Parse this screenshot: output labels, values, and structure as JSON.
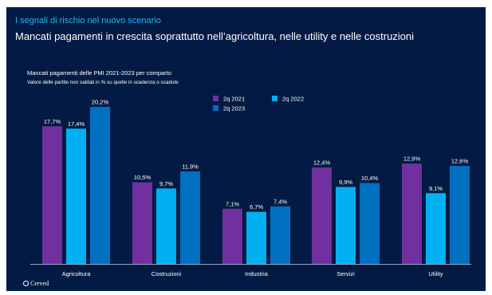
{
  "header": {
    "kicker": "I segnali di rischio nel nuovo scenario",
    "title": "Mancati pagamenti in crescita soprattutto nell’agricoltura, nelle utility e nelle costruzioni"
  },
  "logo": {
    "text": "Cerved"
  },
  "colors": {
    "background": "#031b44",
    "kicker": "#23b6f0",
    "axis": "#9aa4b8"
  },
  "chart_data": {
    "type": "bar",
    "title": "Mancati pagamenti delle PMI 2021-2023 per comparto",
    "subtitle": "Valore delle partite non saldati in % su quelle in scadenza o scadute",
    "categories": [
      "Agricoltura",
      "Costruzioni",
      "Industria",
      "Servizi",
      "Utility"
    ],
    "series": [
      {
        "name": "2q 2021",
        "color": "#7030a0",
        "values": [
          17.7,
          10.5,
          7.1,
          12.4,
          12.9
        ],
        "labels": [
          "17,7%",
          "10,5%",
          "7,1%",
          "12,4%",
          "12,9%"
        ]
      },
      {
        "name": "2q 2022",
        "color": "#00b0f0",
        "values": [
          17.4,
          9.7,
          6.7,
          9.9,
          9.1
        ],
        "labels": [
          "17,4%",
          "9,7%",
          "6,7%",
          "9,9%",
          "9,1%"
        ]
      },
      {
        "name": "2q 2023",
        "color": "#0070c0",
        "values": [
          20.2,
          11.9,
          7.4,
          10.4,
          12.6
        ],
        "labels": [
          "20,2%",
          "11,9%",
          "7,4%",
          "10,4%",
          "12,6%"
        ]
      }
    ],
    "ylim": [
      0,
      20.2
    ],
    "legend": "top-right",
    "grid": false
  }
}
